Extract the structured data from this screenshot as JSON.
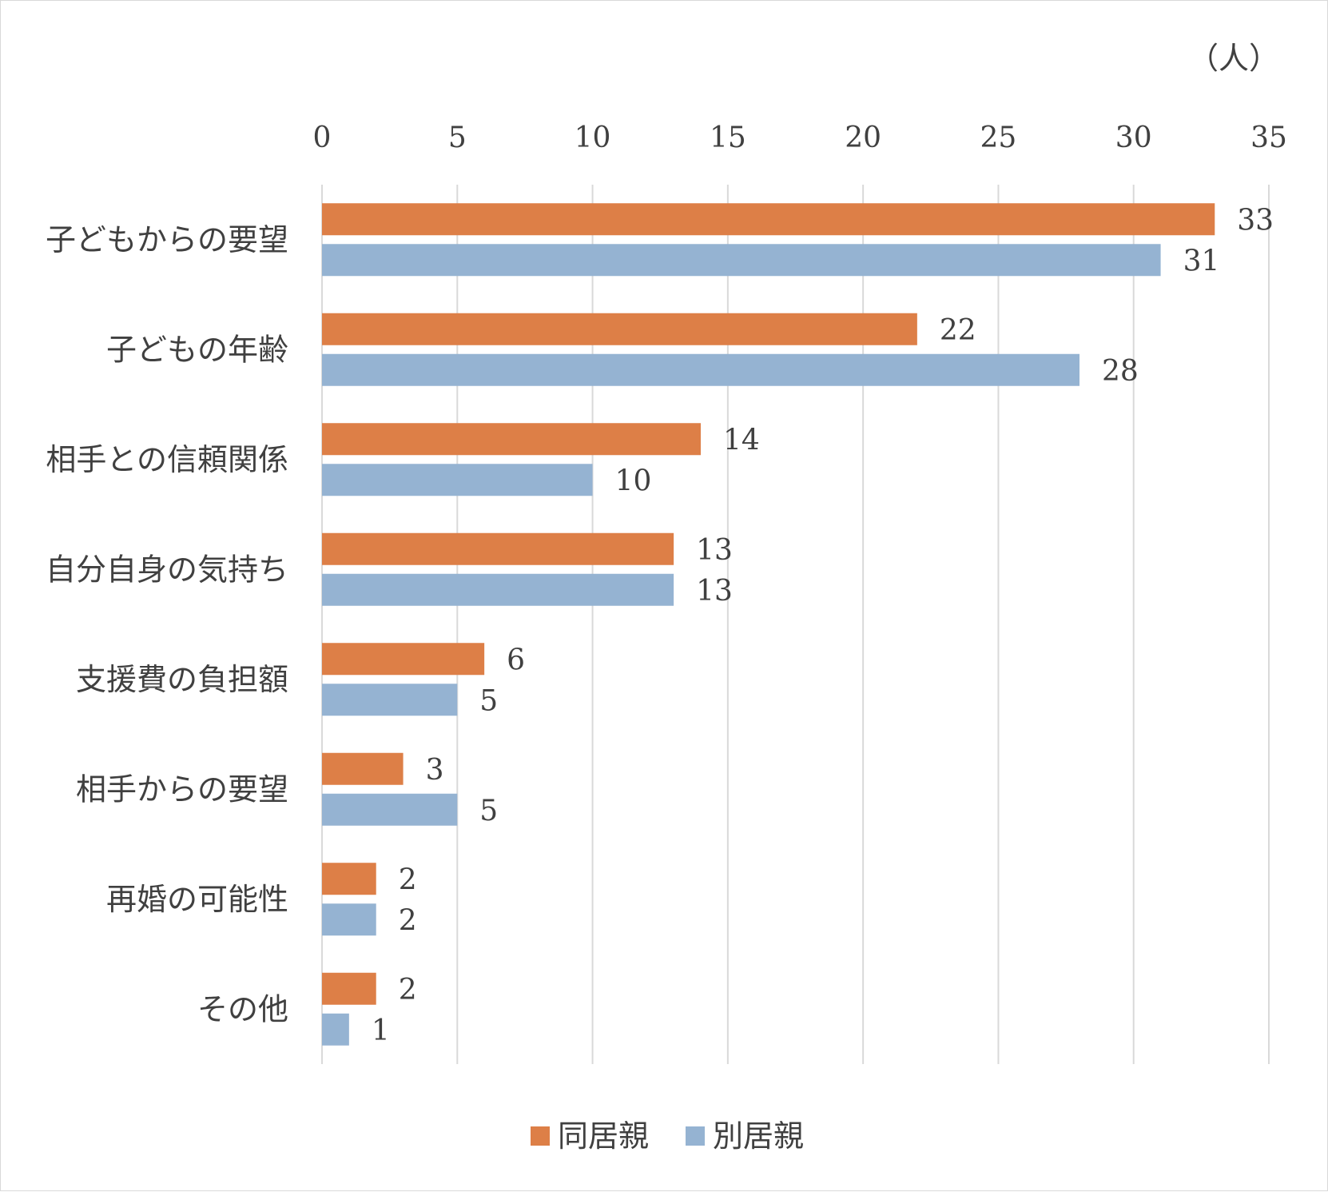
{
  "chart_data": {
    "type": "bar",
    "orientation": "horizontal",
    "unit": "（人）",
    "categories": [
      "子どもからの要望",
      "子どもの年齢",
      "相手との信頼関係",
      "自分自身の気持ち",
      "支援費の負担額",
      "相手からの要望",
      "再婚の可能性",
      "その他"
    ],
    "series": [
      {
        "name": "同居親",
        "color": "#dd7f47",
        "values": [
          33,
          22,
          14,
          13,
          6,
          3,
          2,
          2
        ]
      },
      {
        "name": "別居親",
        "color": "#95b3d2",
        "values": [
          31,
          28,
          10,
          13,
          5,
          5,
          2,
          1
        ]
      }
    ],
    "xlim": [
      0,
      35
    ],
    "ticks": [
      0,
      5,
      10,
      15,
      20,
      25,
      30,
      35
    ],
    "axis_position": "top",
    "grid": true,
    "legend": "bottom-center",
    "gridline_color": "#d9d9d9",
    "text_color": "#404040"
  }
}
